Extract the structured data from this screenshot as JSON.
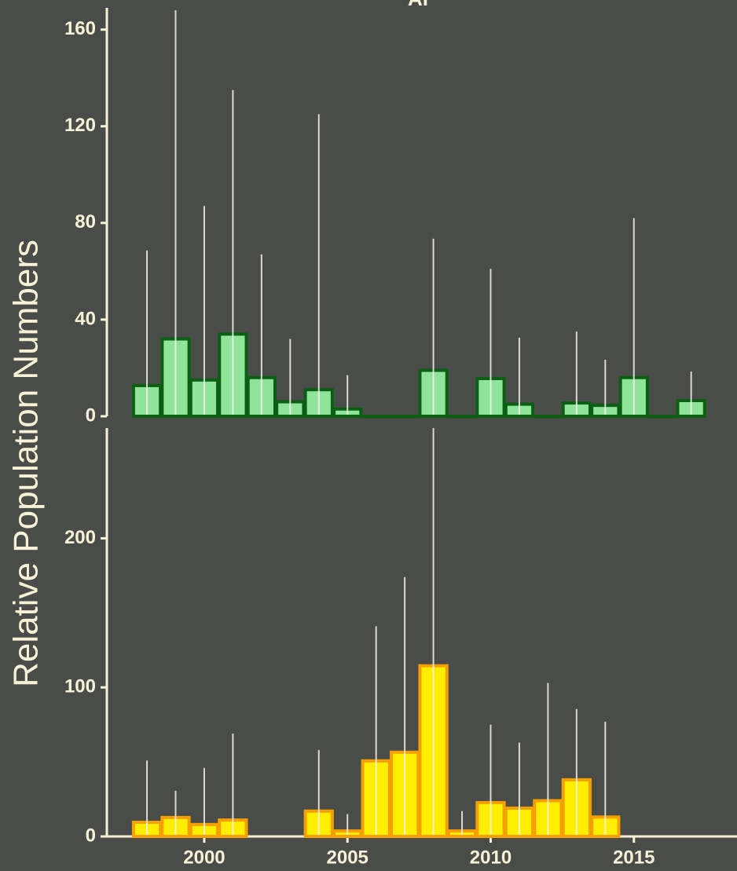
{
  "ylabel": "Relative Population Numbers",
  "chart_data": [
    {
      "type": "bar",
      "title": "AI",
      "x": [
        1998,
        1999,
        2000,
        2001,
        2002,
        2003,
        2004,
        2005,
        2006,
        2007,
        2008,
        2009,
        2010,
        2011,
        2012,
        2013,
        2014,
        2015,
        2016,
        2017
      ],
      "values": [
        12.7,
        32,
        15,
        34,
        16,
        6,
        11,
        3,
        0,
        0,
        19,
        0,
        15.6,
        5,
        0,
        5.5,
        4.5,
        16,
        0,
        6.5
      ],
      "upper": [
        68.6,
        168,
        87,
        135,
        67,
        32,
        125,
        17,
        null,
        null,
        73.5,
        null,
        61,
        32.5,
        null,
        35,
        23.4,
        82,
        null,
        18.5
      ],
      "color": "#90e39a",
      "edgecolor": "#0b5e12",
      "xlim": [
        1996.6,
        2018.6
      ],
      "ylim": [
        0,
        169
      ],
      "yticks": [
        0,
        40,
        80,
        120,
        160
      ]
    },
    {
      "type": "bar",
      "x": [
        1998,
        1999,
        2000,
        2001,
        2002,
        2003,
        2004,
        2005,
        2006,
        2007,
        2008,
        2009,
        2010,
        2011,
        2012,
        2013,
        2014,
        2015,
        2016,
        2017
      ],
      "values": [
        9.5,
        12.7,
        8,
        11,
        null,
        null,
        17,
        3.7,
        50.7,
        56.5,
        114.5,
        3.7,
        22.7,
        19,
        24,
        38,
        13,
        null,
        null,
        null
      ],
      "upper": [
        51,
        30.6,
        46,
        69,
        null,
        null,
        58,
        15,
        141,
        174,
        275,
        17,
        75,
        63,
        103,
        85.5,
        77,
        null,
        null,
        null
      ],
      "color": "#ffee00",
      "edgecolor": "#f5a000",
      "xlim": [
        1996.6,
        2018.6
      ],
      "ylim": [
        0,
        274
      ],
      "yticks": [
        0,
        100,
        200
      ],
      "xticks": [
        2000,
        2005,
        2010,
        2015
      ]
    }
  ]
}
